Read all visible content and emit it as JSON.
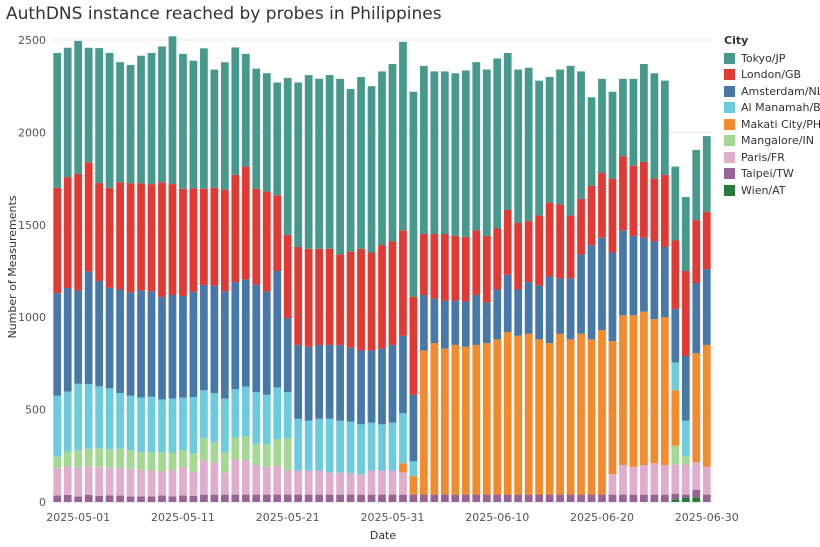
{
  "chart_data": {
    "type": "bar",
    "stacked": true,
    "title": "AuthDNS instance reached by probes in Philippines",
    "xlabel": "Date",
    "ylabel": "Number of Measurements",
    "ylim": [
      0,
      2500
    ],
    "yticks": [
      0,
      500,
      1000,
      1500,
      2000,
      2500
    ],
    "grid": "horizontal",
    "legend_title": "City",
    "legend_position": "right",
    "x_tick_labels": [
      "2025-05-01",
      "2025-05-11",
      "2025-05-21",
      "2025-05-31",
      "2025-06-10",
      "2025-06-20",
      "2025-06-30"
    ],
    "x_tick_indices": [
      2,
      12,
      22,
      32,
      42,
      52,
      62
    ],
    "categories": [
      "2025-04-29",
      "2025-04-30",
      "2025-05-01",
      "2025-05-02",
      "2025-05-03",
      "2025-05-04",
      "2025-05-05",
      "2025-05-06",
      "2025-05-07",
      "2025-05-08",
      "2025-05-09",
      "2025-05-10",
      "2025-05-11",
      "2025-05-12",
      "2025-05-13",
      "2025-05-14",
      "2025-05-15",
      "2025-05-16",
      "2025-05-17",
      "2025-05-18",
      "2025-05-19",
      "2025-05-20",
      "2025-05-21",
      "2025-05-22",
      "2025-05-23",
      "2025-05-24",
      "2025-05-25",
      "2025-05-26",
      "2025-05-27",
      "2025-05-28",
      "2025-05-29",
      "2025-05-30",
      "2025-05-31",
      "2025-06-01",
      "2025-06-02",
      "2025-06-03",
      "2025-06-04",
      "2025-06-05",
      "2025-06-06",
      "2025-06-07",
      "2025-06-08",
      "2025-06-09",
      "2025-06-10",
      "2025-06-11",
      "2025-06-12",
      "2025-06-13",
      "2025-06-14",
      "2025-06-15",
      "2025-06-16",
      "2025-06-17",
      "2025-06-18",
      "2025-06-19",
      "2025-06-20",
      "2025-06-21",
      "2025-06-22",
      "2025-06-23",
      "2025-06-24",
      "2025-06-25",
      "2025-06-26",
      "2025-06-27",
      "2025-06-28",
      "2025-06-29",
      "2025-06-30"
    ],
    "series": [
      {
        "name": "Wien/AT",
        "color": "#2a7a3a",
        "values": [
          0,
          0,
          0,
          0,
          0,
          0,
          0,
          0,
          0,
          0,
          0,
          0,
          0,
          0,
          0,
          0,
          0,
          0,
          0,
          0,
          0,
          0,
          0,
          0,
          0,
          0,
          0,
          0,
          0,
          0,
          0,
          0,
          0,
          0,
          0,
          0,
          0,
          0,
          0,
          0,
          0,
          0,
          0,
          0,
          0,
          0,
          0,
          0,
          0,
          0,
          0,
          0,
          0,
          0,
          0,
          0,
          0,
          0,
          0,
          15,
          25,
          25,
          0
        ]
      },
      {
        "name": "Taipei/TW",
        "color": "#9a6397",
        "values": [
          35,
          38,
          30,
          38,
          33,
          35,
          35,
          30,
          30,
          30,
          35,
          30,
          35,
          33,
          40,
          40,
          40,
          40,
          40,
          40,
          40,
          40,
          40,
          40,
          40,
          40,
          40,
          40,
          40,
          40,
          40,
          40,
          40,
          40,
          40,
          40,
          40,
          40,
          40,
          40,
          40,
          40,
          40,
          40,
          40,
          40,
          40,
          40,
          40,
          40,
          40,
          40,
          40,
          40,
          40,
          40,
          40,
          40,
          40,
          30,
          15,
          40,
          40
        ]
      },
      {
        "name": "Paris/FR",
        "color": "#e0aecd",
        "values": [
          150,
          155,
          155,
          155,
          158,
          150,
          150,
          150,
          145,
          140,
          130,
          145,
          155,
          130,
          185,
          175,
          120,
          190,
          185,
          160,
          150,
          155,
          130,
          130,
          130,
          130,
          120,
          120,
          115,
          110,
          130,
          130,
          130,
          120,
          0,
          0,
          0,
          0,
          0,
          0,
          0,
          0,
          0,
          0,
          0,
          0,
          0,
          0,
          0,
          0,
          0,
          0,
          0,
          110,
          160,
          150,
          160,
          170,
          160,
          160,
          160,
          150,
          150
        ]
      },
      {
        "name": "Mangalore/IN",
        "color": "#a4d993",
        "values": [
          60,
          80,
          95,
          95,
          100,
          100,
          105,
          100,
          95,
          100,
          105,
          90,
          90,
          100,
          120,
          110,
          110,
          120,
          130,
          115,
          120,
          145,
          175,
          0,
          0,
          0,
          0,
          0,
          0,
          0,
          0,
          0,
          0,
          0,
          0,
          0,
          0,
          0,
          0,
          0,
          0,
          0,
          0,
          0,
          0,
          0,
          0,
          0,
          0,
          0,
          0,
          0,
          0,
          0,
          0,
          0,
          0,
          0,
          0,
          100,
          50,
          0,
          0
        ]
      },
      {
        "name": "Makati City/PH",
        "color": "#f28b2e",
        "values": [
          0,
          0,
          0,
          0,
          0,
          0,
          0,
          0,
          0,
          0,
          0,
          0,
          0,
          0,
          0,
          0,
          0,
          0,
          0,
          0,
          0,
          0,
          0,
          0,
          0,
          0,
          0,
          0,
          0,
          0,
          0,
          0,
          0,
          50,
          100,
          780,
          820,
          790,
          810,
          800,
          810,
          820,
          840,
          880,
          860,
          870,
          840,
          820,
          870,
          840,
          870,
          840,
          890,
          720,
          810,
          820,
          830,
          780,
          800,
          300,
          0,
          590,
          660
        ]
      },
      {
        "name": "Al Manamah/BH",
        "color": "#6ccbdc",
        "values": [
          330,
          325,
          360,
          350,
          335,
          330,
          300,
          295,
          295,
          300,
          285,
          295,
          285,
          305,
          260,
          265,
          290,
          260,
          270,
          280,
          270,
          280,
          250,
          280,
          270,
          280,
          290,
          280,
          280,
          270,
          260,
          250,
          260,
          270,
          80,
          0,
          0,
          0,
          0,
          0,
          0,
          0,
          0,
          0,
          0,
          0,
          0,
          0,
          0,
          0,
          0,
          0,
          0,
          0,
          0,
          0,
          0,
          0,
          0,
          150,
          190,
          0,
          0
        ]
      },
      {
        "name": "Amsterdam/NL",
        "color": "#4878a8",
        "values": [
          555,
          560,
          505,
          610,
          570,
          545,
          560,
          560,
          580,
          570,
          555,
          560,
          550,
          570,
          570,
          580,
          580,
          580,
          580,
          580,
          560,
          630,
          400,
          400,
          400,
          400,
          400,
          410,
          400,
          400,
          390,
          410,
          420,
          420,
          360,
          300,
          240,
          260,
          240,
          245,
          270,
          220,
          270,
          310,
          250,
          280,
          290,
          360,
          300,
          330,
          430,
          510,
          500,
          480,
          460,
          430,
          400,
          420,
          380,
          290,
          350,
          380,
          410
        ]
      },
      {
        "name": "London/GB",
        "color": "#e03a34",
        "values": [
          570,
          600,
          630,
          590,
          530,
          540,
          580,
          590,
          580,
          580,
          620,
          600,
          580,
          560,
          520,
          530,
          550,
          580,
          610,
          520,
          540,
          410,
          450,
          530,
          530,
          520,
          520,
          490,
          520,
          550,
          530,
          560,
          560,
          570,
          530,
          330,
          350,
          360,
          350,
          350,
          350,
          360,
          330,
          350,
          360,
          330,
          380,
          400,
          400,
          340,
          300,
          320,
          350,
          400,
          400,
          380,
          410,
          340,
          390,
          370,
          460,
          340,
          310
        ]
      },
      {
        "name": "Tokyo/JP",
        "color": "#47998e",
        "values": [
          730,
          700,
          720,
          620,
          730,
          730,
          650,
          640,
          690,
          710,
          735,
          800,
          730,
          690,
          760,
          640,
          690,
          690,
          610,
          650,
          640,
          610,
          850,
          890,
          940,
          920,
          940,
          950,
          880,
          930,
          900,
          940,
          960,
          1020,
          1110,
          910,
          880,
          880,
          880,
          900,
          910,
          900,
          920,
          850,
          830,
          830,
          730,
          680,
          730,
          810,
          690,
          480,
          510,
          470,
          420,
          470,
          530,
          570,
          510,
          400,
          400,
          380,
          410
        ]
      }
    ]
  }
}
